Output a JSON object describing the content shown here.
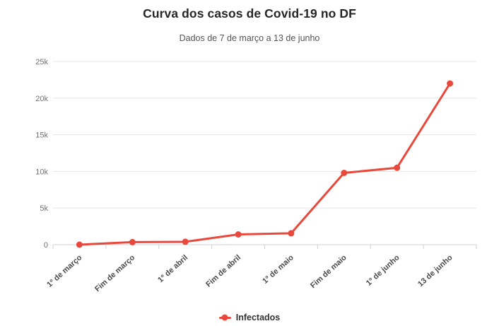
{
  "header": {
    "title": "Curva dos casos de Covid-19 no DF",
    "subtitle": "Dados de 7 de março a 13 de junho"
  },
  "legend": {
    "items": [
      {
        "label": "Infectados",
        "color": "#e8493c"
      }
    ]
  },
  "style": {
    "accent_red": "#e8493c",
    "gridline": "#e6e6e6",
    "axis_line": "#cfd2d6",
    "y_label_color": "#707070",
    "x_label_color": "#4a4a4a",
    "background": "#ffffff"
  },
  "chart_data": {
    "type": "line",
    "title": "Curva dos casos de Covid-19 no DF",
    "subtitle": "Dados de 7 de março a 13 de junho",
    "categories": [
      "1º de março",
      "Fim de março",
      "1º de abril",
      "Fim de abril",
      "1º de maio",
      "Fim de maio",
      "1º de junho",
      "13 de junho"
    ],
    "series": [
      {
        "name": "Infectados",
        "color": "#e8493c",
        "values": [
          1,
          350,
          400,
          1400,
          1550,
          9800,
          10500,
          22000
        ]
      }
    ],
    "xlabel": "",
    "ylabel": "",
    "ylim": [
      0,
      25000
    ],
    "yticks": {
      "values": [
        0,
        5000,
        10000,
        15000,
        20000,
        25000
      ],
      "labels": [
        "0",
        "5k",
        "10k",
        "15k",
        "20k",
        "25k"
      ]
    },
    "grid": "horizontal",
    "legend_position": "bottom",
    "marker": "circle"
  }
}
